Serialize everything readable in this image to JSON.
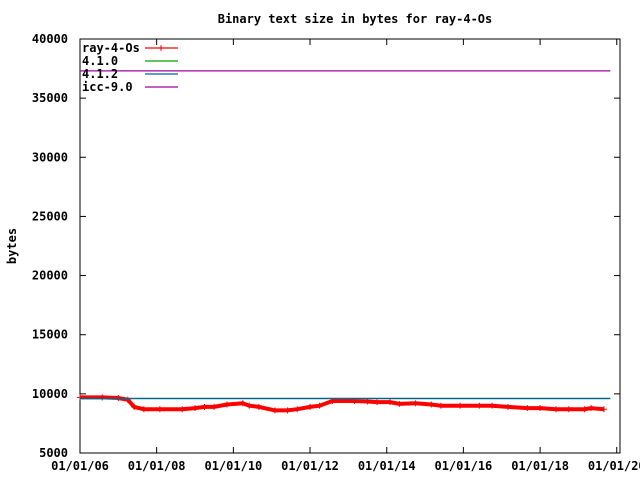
{
  "chart_data": {
    "type": "line",
    "title": "Binary text size in bytes for ray-4-Os",
    "xlabel": "",
    "ylabel": "bytes",
    "ylim": [
      5000,
      40000
    ],
    "xlim": [
      "2006-01-01",
      "2020-02-01"
    ],
    "y_ticks": [
      5000,
      10000,
      15000,
      20000,
      25000,
      30000,
      35000,
      40000
    ],
    "x_ticks": [
      "01/01/06",
      "01/01/08",
      "01/01/10",
      "01/01/12",
      "01/01/14",
      "01/01/16",
      "01/01/18",
      "01/01/20"
    ],
    "x_tick_dates": [
      "2006-01-01",
      "2008-01-01",
      "2010-01-01",
      "2012-01-01",
      "2014-01-01",
      "2016-01-01",
      "2018-01-01",
      "2020-01-01"
    ],
    "grid": false,
    "legend_position": "top-left",
    "series": [
      {
        "name": "ray-4-Os",
        "color": "#ff0000",
        "style": "linespoints",
        "x": [
          "2006-01-01",
          "2006-08-01",
          "2007-01-01",
          "2007-04-01",
          "2007-06-01",
          "2007-09-01",
          "2008-02-01",
          "2008-09-01",
          "2009-01-01",
          "2009-04-01",
          "2009-07-01",
          "2009-11-01",
          "2010-04-01",
          "2010-06-01",
          "2010-09-01",
          "2011-02-01",
          "2011-06-01",
          "2011-09-01",
          "2012-01-01",
          "2012-04-01",
          "2012-08-01",
          "2013-03-01",
          "2013-07-01",
          "2013-10-01",
          "2014-02-01",
          "2014-05-01",
          "2014-10-01",
          "2015-03-01",
          "2015-06-01",
          "2015-12-01",
          "2016-06-01",
          "2016-10-01",
          "2017-03-01",
          "2017-09-01",
          "2018-01-01",
          "2018-06-01",
          "2018-10-01",
          "2019-03-01",
          "2019-05-01",
          "2019-09-01"
        ],
        "values": [
          9700,
          9700,
          9650,
          9500,
          8900,
          8700,
          8700,
          8700,
          8800,
          8900,
          8900,
          9100,
          9200,
          9000,
          8900,
          8600,
          8600,
          8700,
          8900,
          9000,
          9400,
          9400,
          9350,
          9300,
          9300,
          9150,
          9200,
          9100,
          9000,
          9000,
          9000,
          9000,
          8900,
          8800,
          8800,
          8700,
          8700,
          8700,
          8800,
          8700
        ]
      },
      {
        "name": "4.1.0",
        "color": "#00a000",
        "style": "lines",
        "x": [
          "2006-01-01",
          "2019-11-01"
        ],
        "values": [
          9600,
          9600
        ]
      },
      {
        "name": "4.1.2",
        "color": "#0060ad",
        "style": "lines",
        "x": [
          "2006-01-01",
          "2019-11-01"
        ],
        "values": [
          9620,
          9620
        ]
      },
      {
        "name": "icc-9.0",
        "color": "#a000a0",
        "style": "lines",
        "x": [
          "2006-01-01",
          "2019-11-01"
        ],
        "values": [
          37300,
          37300
        ]
      }
    ]
  }
}
